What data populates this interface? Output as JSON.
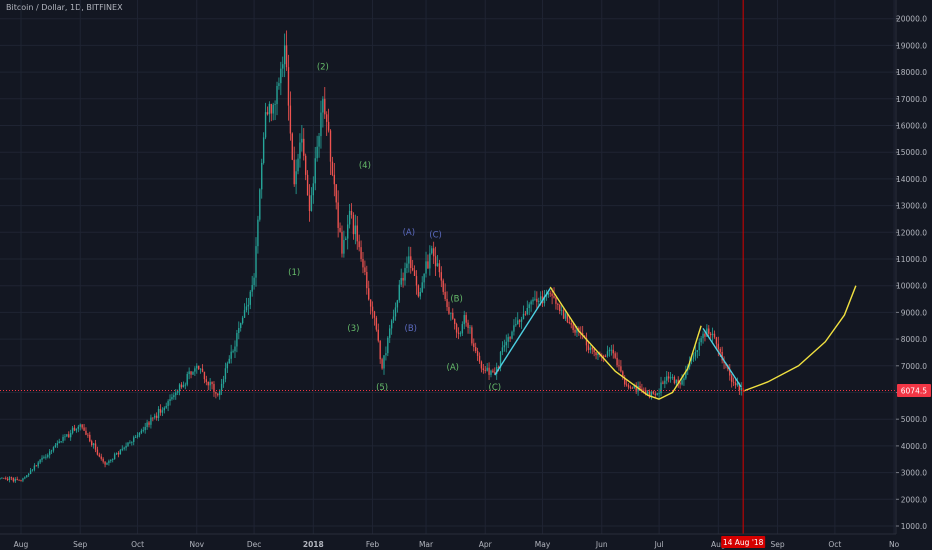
{
  "header": {
    "title": "Bitcoin / Dollar, 1D, BITFINEX"
  },
  "chart_data": {
    "type": "candlestick",
    "symbol": "Bitcoin / Dollar",
    "interval": "1D",
    "exchange": "BITFINEX",
    "y_ticks": [
      1000,
      2000,
      3000,
      4000,
      5000,
      6000,
      7000,
      8000,
      9000,
      10000,
      11000,
      12000,
      13000,
      14000,
      15000,
      16000,
      17000,
      18000,
      19000,
      20000
    ],
    "y_tick_labels": [
      "1000.0",
      "2000.0",
      "3000.0",
      "4000.0",
      "5000.0",
      "6000.0",
      "7000.0",
      "8000.0",
      "9000.0",
      "10000.0",
      "11000.0",
      "12000.0",
      "13000.0",
      "14000.0",
      "15000.0",
      "16000.0",
      "17000.0",
      "18000.0",
      "19000.0",
      "20000.0"
    ],
    "ylim": [
      700,
      20700
    ],
    "x_range": [
      "2017-07-21",
      "2018-11-02"
    ],
    "x_ticks": [
      {
        "label": "Aug",
        "date": "2017-08-01"
      },
      {
        "label": "Sep",
        "date": "2017-09-01"
      },
      {
        "label": "Oct",
        "date": "2017-10-01"
      },
      {
        "label": "Nov",
        "date": "2017-11-01"
      },
      {
        "label": "Dec",
        "date": "2017-12-01"
      },
      {
        "label": "2018",
        "date": "2018-01-01"
      },
      {
        "label": "Feb",
        "date": "2018-02-01"
      },
      {
        "label": "Mar",
        "date": "2018-03-01"
      },
      {
        "label": "Apr",
        "date": "2018-04-01"
      },
      {
        "label": "May",
        "date": "2018-05-01"
      },
      {
        "label": "Jun",
        "date": "2018-06-01"
      },
      {
        "label": "Jul",
        "date": "2018-07-01"
      },
      {
        "label": "Aug",
        "date": "2018-08-01"
      },
      {
        "label": "Sep",
        "date": "2018-09-01"
      },
      {
        "label": "Oct",
        "date": "2018-10-01"
      },
      {
        "label": "No",
        "date": "2018-11-01"
      }
    ],
    "anchors": [
      {
        "date": "2017-07-21",
        "close": 2800
      },
      {
        "date": "2017-08-01",
        "close": 2700
      },
      {
        "date": "2017-08-20",
        "close": 4100
      },
      {
        "date": "2017-09-01",
        "close": 4800
      },
      {
        "date": "2017-09-14",
        "close": 3300
      },
      {
        "date": "2017-10-01",
        "close": 4400
      },
      {
        "date": "2017-10-20",
        "close": 5900
      },
      {
        "date": "2017-11-01",
        "close": 7000
      },
      {
        "date": "2017-11-12",
        "close": 5900
      },
      {
        "date": "2017-11-25",
        "close": 8800
      },
      {
        "date": "2017-12-01",
        "close": 10300
      },
      {
        "date": "2017-12-07",
        "close": 16500
      },
      {
        "date": "2017-12-12",
        "close": 16800
      },
      {
        "date": "2017-12-17",
        "close": 19000
      },
      {
        "date": "2017-12-22",
        "close": 13800
      },
      {
        "date": "2017-12-26",
        "close": 15500
      },
      {
        "date": "2017-12-30",
        "close": 12800
      },
      {
        "date": "2018-01-06",
        "close": 17000
      },
      {
        "date": "2018-01-12",
        "close": 13800
      },
      {
        "date": "2018-01-16",
        "close": 11200
      },
      {
        "date": "2018-01-20",
        "close": 12800
      },
      {
        "date": "2018-01-26",
        "close": 11000
      },
      {
        "date": "2018-02-02",
        "close": 8800
      },
      {
        "date": "2018-02-06",
        "close": 6900
      },
      {
        "date": "2018-02-10",
        "close": 8400
      },
      {
        "date": "2018-02-20",
        "close": 11100
      },
      {
        "date": "2018-02-25",
        "close": 9600
      },
      {
        "date": "2018-03-04",
        "close": 11400
      },
      {
        "date": "2018-03-12",
        "close": 9200
      },
      {
        "date": "2018-03-18",
        "close": 8200
      },
      {
        "date": "2018-03-21",
        "close": 8900
      },
      {
        "date": "2018-03-30",
        "close": 6900
      },
      {
        "date": "2018-04-06",
        "close": 6700
      },
      {
        "date": "2018-04-12",
        "close": 7900
      },
      {
        "date": "2018-04-24",
        "close": 9300
      },
      {
        "date": "2018-05-05",
        "close": 9700
      },
      {
        "date": "2018-05-15",
        "close": 8600
      },
      {
        "date": "2018-05-29",
        "close": 7400
      },
      {
        "date": "2018-06-06",
        "close": 7600
      },
      {
        "date": "2018-06-13",
        "close": 6300
      },
      {
        "date": "2018-06-22",
        "close": 6100
      },
      {
        "date": "2018-06-29",
        "close": 5900
      },
      {
        "date": "2018-07-05",
        "close": 6600
      },
      {
        "date": "2018-07-12",
        "close": 6300
      },
      {
        "date": "2018-07-24",
        "close": 8200
      },
      {
        "date": "2018-07-29",
        "close": 8200
      },
      {
        "date": "2018-08-08",
        "close": 6400
      },
      {
        "date": "2018-08-14",
        "close": 6070
      }
    ],
    "last_price": 6074.5,
    "last_price_label": "6074.5",
    "last_price_color": "#f23645",
    "marker": {
      "date": "2018-08-14",
      "label": "14 Aug '18"
    },
    "marker_color": "#d50000",
    "up_color": "#26a69a",
    "down_color": "#ef5350",
    "annotations": [
      {
        "text": "(1)",
        "date": "2017-12-22",
        "price": 10400,
        "color": "#66bb6a"
      },
      {
        "text": "(2)",
        "date": "2018-01-06",
        "price": 18100,
        "color": "#66bb6a"
      },
      {
        "text": "(3)",
        "date": "2018-01-22",
        "price": 8300,
        "color": "#66bb6a"
      },
      {
        "text": "(4)",
        "date": "2018-01-28",
        "price": 14400,
        "color": "#66bb6a"
      },
      {
        "text": "(5)",
        "date": "2018-02-06",
        "price": 6100,
        "color": "#66bb6a"
      },
      {
        "text": "(A)",
        "date": "2018-02-20",
        "price": 11900,
        "color": "#5c6bc0"
      },
      {
        "text": "(B)",
        "date": "2018-02-21",
        "price": 8300,
        "color": "#5c6bc0"
      },
      {
        "text": "(C)",
        "date": "2018-03-06",
        "price": 11800,
        "color": "#5c6bc0"
      },
      {
        "text": "(B)",
        "date": "2018-03-17",
        "price": 9400,
        "color": "#66bb6a"
      },
      {
        "text": "(A)",
        "date": "2018-03-15",
        "price": 6850,
        "color": "#66bb6a"
      },
      {
        "text": "(C)",
        "date": "2018-04-06",
        "price": 6100,
        "color": "#66bb6a"
      }
    ],
    "trend_lines": [
      {
        "color": "#4dd0e1",
        "points": [
          [
            "2018-04-06",
            6650
          ],
          [
            "2018-05-05",
            9900
          ]
        ]
      },
      {
        "color": "#4dd0e1",
        "points": [
          [
            "2018-07-24",
            8400
          ],
          [
            "2018-08-13",
            6200
          ]
        ]
      },
      {
        "color": "#f0e040",
        "points": [
          [
            "2018-05-05",
            9950
          ],
          [
            "2018-05-20",
            8300
          ],
          [
            "2018-06-08",
            6800
          ],
          [
            "2018-06-25",
            5900
          ],
          [
            "2018-07-01",
            5750
          ],
          [
            "2018-07-08",
            6000
          ],
          [
            "2018-07-16",
            6900
          ],
          [
            "2018-07-23",
            8500
          ]
        ]
      },
      {
        "color": "#f0e040",
        "points": [
          [
            "2018-08-14",
            6050
          ],
          [
            "2018-08-27",
            6400
          ],
          [
            "2018-09-12",
            7000
          ],
          [
            "2018-09-26",
            7900
          ],
          [
            "2018-10-06",
            8900
          ],
          [
            "2018-10-12",
            10000
          ]
        ]
      }
    ],
    "horizontal_line": {
      "price": 6074.5,
      "color": "#f23645"
    }
  }
}
